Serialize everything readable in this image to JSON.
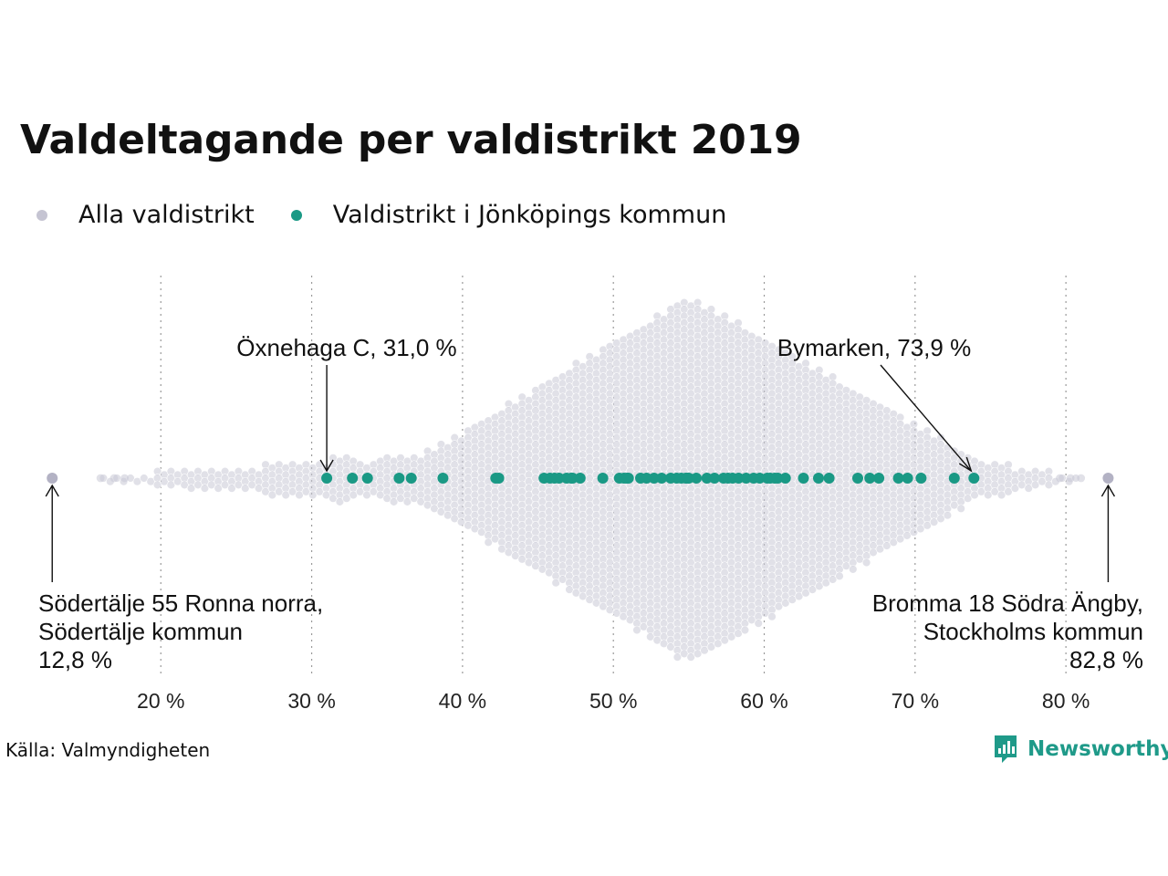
{
  "title": "Valdeltagande per valdistrikt 2019",
  "source": "Källa: Valmyndigheten",
  "brand": "Newsworthy",
  "colors": {
    "all": "#c9c8d6",
    "all_outlier": "#b3b2c4",
    "highlight": "#1a9985",
    "grid": "#9a9a9a",
    "brand": "#1f9a89"
  },
  "legend": [
    {
      "label": "Alla valdistrikt",
      "color": "#c5c4d2"
    },
    {
      "label": "Valdistrikt i Jönköpings kommun",
      "color": "#1a9985"
    }
  ],
  "chart_data": {
    "type": "scatter",
    "subtype": "beeswarm",
    "xlim": [
      12,
      83.5
    ],
    "x_ticks": [
      20,
      30,
      40,
      50,
      60,
      70,
      80
    ],
    "x_tick_labels": [
      "20 %",
      "30 %",
      "40 %",
      "50 %",
      "60 %",
      "70 %",
      "80 %"
    ],
    "grid": "vertical dotted at ticks",
    "series": [
      {
        "name": "Alla valdistrikt",
        "distribution": "roughly 6000 districts, densest around 53–55 %, minimum 12,8 %, maximum 82,8 %",
        "extremes": [
          12.8,
          82.8
        ]
      },
      {
        "name": "Valdistrikt i Jönköpings kommun",
        "values": [
          31.0,
          32.7,
          33.7,
          35.8,
          36.6,
          38.7,
          42.2,
          42.4,
          45.4,
          45.8,
          46.1,
          46.4,
          46.9,
          47.2,
          47.3,
          47.8,
          49.3,
          50.4,
          50.7,
          50.9,
          51.0,
          51.8,
          52.2,
          52.7,
          53.2,
          53.8,
          54.2,
          54.5,
          54.8,
          54.9,
          55.0,
          55.5,
          56.2,
          56.7,
          57.3,
          57.6,
          57.9,
          58.3,
          58.8,
          59.3,
          59.7,
          60.2,
          60.4,
          60.7,
          60.9,
          61.4,
          62.6,
          63.6,
          64.3,
          66.2,
          67.0,
          67.6,
          68.9,
          69.5,
          70.4,
          72.6,
          73.9
        ]
      }
    ],
    "annotations": [
      {
        "lines": [
          "Öxnehaga C, 31,0 %"
        ],
        "value": 31.0
      },
      {
        "lines": [
          "Bymarken, 73,9 %"
        ],
        "value": 73.9
      },
      {
        "lines": [
          "Södertälje 55 Ronna norra,",
          "Södertälje kommun",
          "12,8 %"
        ],
        "value": 12.8
      },
      {
        "lines": [
          "Bromma 18 Södra Ängby,",
          "Stockholms kommun",
          "82,8 %"
        ],
        "value": 82.8
      }
    ]
  }
}
